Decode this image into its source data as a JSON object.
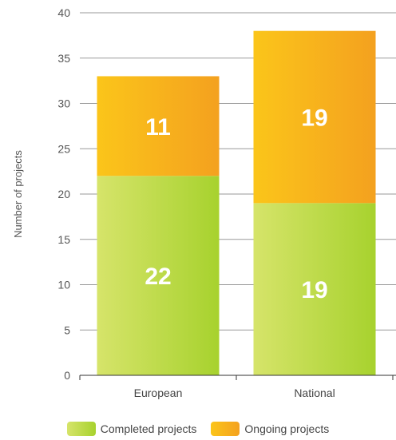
{
  "chart_data": {
    "type": "bar",
    "stacked": true,
    "categories": [
      "European",
      "National"
    ],
    "series": [
      {
        "name": "Completed projects",
        "values": [
          22,
          19
        ],
        "color": "#a7d22e",
        "color_light": "#d6e46a"
      },
      {
        "name": "Ongoing projects",
        "values": [
          11,
          19
        ],
        "color": "#f4a11f",
        "color_light": "#fbc51a"
      }
    ],
    "ylabel": "Number of projects",
    "ylim": [
      0,
      40
    ],
    "yticks": [
      0,
      5,
      10,
      15,
      20,
      25,
      30,
      35,
      40
    ],
    "grid": true,
    "legend_position": "bottom"
  }
}
